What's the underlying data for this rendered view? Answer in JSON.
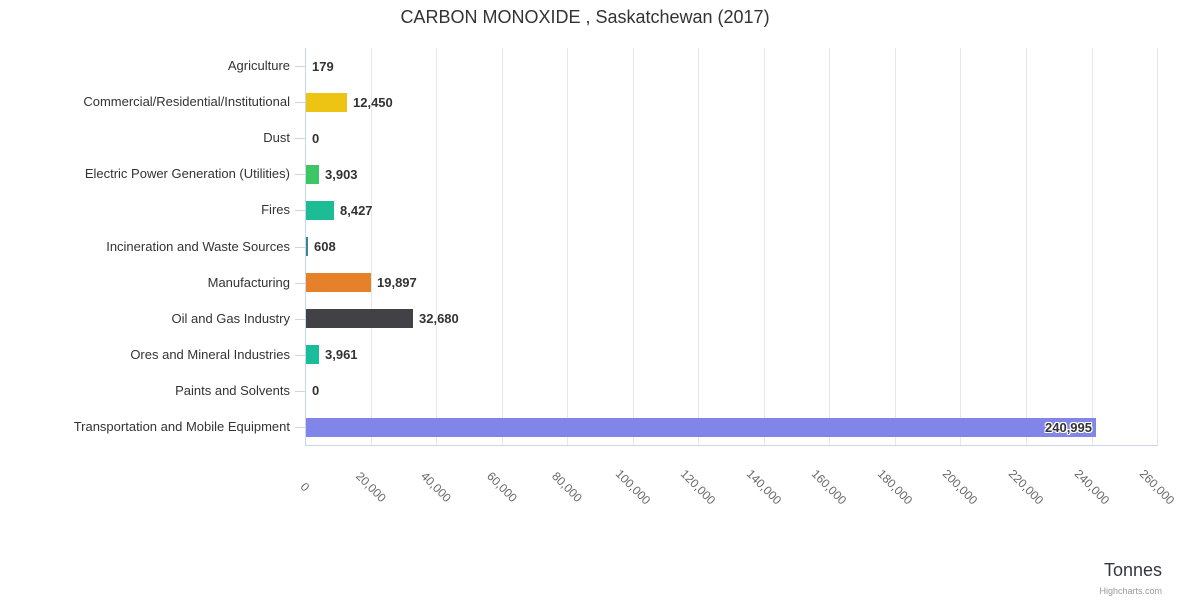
{
  "header": {
    "title": "CARBON MONOXIDE , Saskatchewan (2017)"
  },
  "chart_data": {
    "type": "bar",
    "orientation": "horizontal",
    "title": "CARBON MONOXIDE , Saskatchewan (2017)",
    "categories": [
      "Agriculture",
      "Commercial/Residential/Institutional",
      "Dust",
      "Electric Power Generation (Utilities)",
      "Fires",
      "Incineration and Waste Sources",
      "Manufacturing",
      "Oil and Gas Industry",
      "Ores and Mineral Industries",
      "Paints and Solvents",
      "Transportation and Mobile Equipment"
    ],
    "values": [
      179,
      12450,
      0,
      3903,
      8427,
      608,
      19897,
      32680,
      3961,
      0,
      240995
    ],
    "value_labels": [
      "179",
      "12,450",
      "0",
      "3,903",
      "8,427",
      "608",
      "19,897",
      "32,680",
      "3,961",
      "0",
      "240,995"
    ],
    "bar_colors": [
      null,
      "#EDC414",
      null,
      "#3EC564",
      "#1BBC96",
      "#3C8796",
      "#E68129",
      "#414146",
      "#1ABD9A",
      null,
      "#8185E8"
    ],
    "label_inside": [
      false,
      false,
      false,
      false,
      false,
      false,
      false,
      false,
      false,
      false,
      true
    ],
    "xlabel": "Tonnes",
    "xlim": [
      0,
      260000
    ],
    "x_ticks": [
      0,
      20000,
      40000,
      60000,
      80000,
      100000,
      120000,
      140000,
      160000,
      180000,
      200000,
      220000,
      240000,
      260000
    ],
    "x_tick_labels": [
      "0",
      "20,000",
      "40,000",
      "60,000",
      "80,000",
      "100,000",
      "120,000",
      "140,000",
      "160,000",
      "180,000",
      "200,000",
      "220,000",
      "240,000",
      "260,000"
    ],
    "grid": true,
    "legend": false
  },
  "footer": {
    "axis_title": "Tonnes",
    "credits": "Highcharts.com"
  },
  "colors": {
    "grid": "#E6E6E6",
    "axis": "#CCD6EB",
    "category_label": "#333333",
    "tick_label": "#666666",
    "value_label": "#333333",
    "credits": "#999999"
  }
}
